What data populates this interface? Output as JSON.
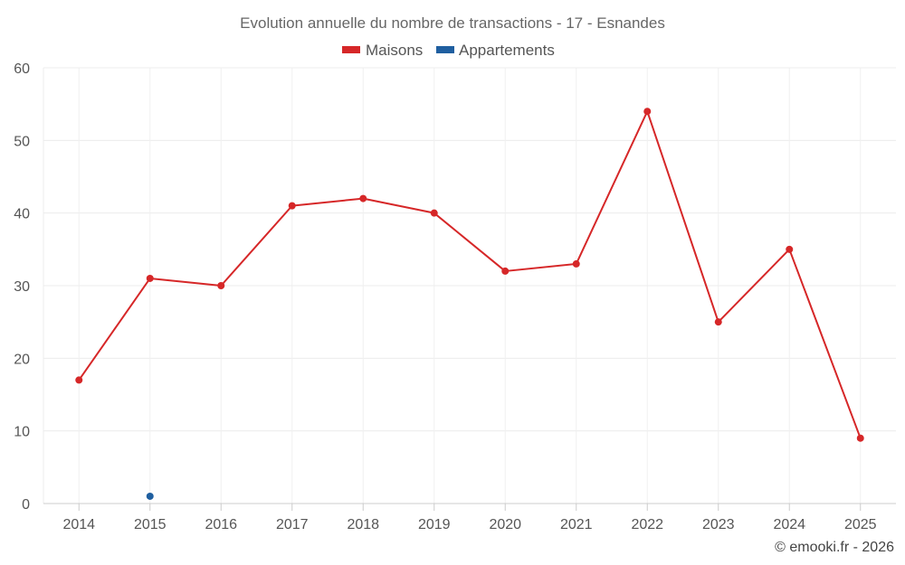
{
  "chart_data": {
    "type": "line",
    "title": "Evolution annuelle du nombre de transactions - 17 - Esnandes",
    "categories": [
      "2014",
      "2015",
      "2016",
      "2017",
      "2018",
      "2019",
      "2020",
      "2021",
      "2022",
      "2023",
      "2024",
      "2025"
    ],
    "yticks": [
      "0",
      "10",
      "20",
      "30",
      "40",
      "50",
      "60"
    ],
    "ylim": [
      0,
      60
    ],
    "grid": true,
    "legend_position": "top-center",
    "series": [
      {
        "name": "Maisons",
        "color": "#d62728",
        "values": [
          17,
          31,
          30,
          41,
          42,
          40,
          32,
          33,
          54,
          25,
          35,
          9
        ]
      },
      {
        "name": "Appartements",
        "color": "#1f5fa0",
        "values": [
          null,
          1,
          null,
          null,
          null,
          null,
          null,
          null,
          null,
          null,
          null,
          null
        ]
      }
    ],
    "credit": "© emooki.fr - 2026"
  }
}
